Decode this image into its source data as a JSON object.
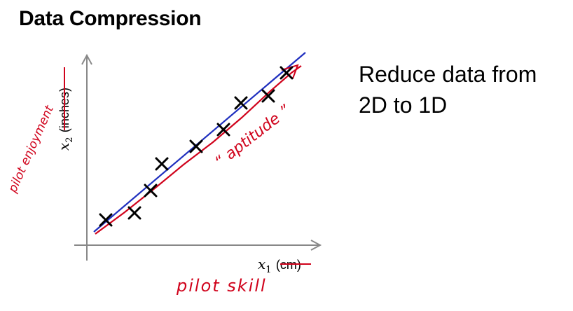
{
  "slide": {
    "title": "Data Compression",
    "statement_lines": [
      "Reduce data from",
      "2D to 1D"
    ]
  },
  "plot": {
    "x_axis": {
      "variable": "x",
      "subscript": "1",
      "unit": "(cm)",
      "handwritten_label": "pilot skill"
    },
    "y_axis": {
      "variable": "x",
      "subscript": "2",
      "unit": "(inches)",
      "handwritten_label": "pilot enjoyment"
    },
    "annotation": "“ aptitude ”",
    "colors": {
      "points": "#000000",
      "ink_red": "#d0021b",
      "line_blue": "#1f2fbf",
      "axis": "#888888"
    }
  }
}
